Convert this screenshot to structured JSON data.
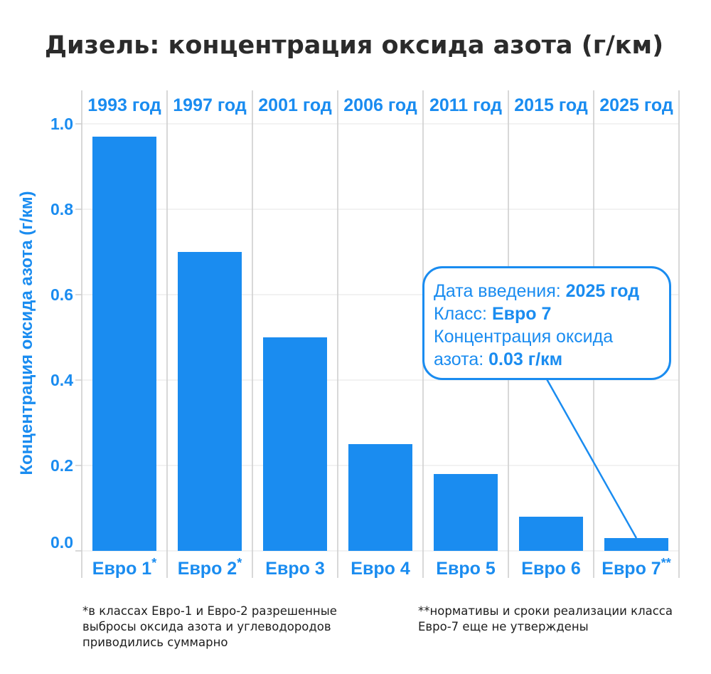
{
  "chart_data": {
    "type": "bar",
    "title": "Дизель: концентрация оксида азота (г/км)",
    "ylabel": "Концентрация оксида азота (г/км)",
    "xlabel": "",
    "categories": [
      "Евро 1",
      "Евро 2",
      "Евро 3",
      "Евро 4",
      "Евро 5",
      "Евро 6",
      "Евро 7"
    ],
    "category_marks": [
      "*",
      "*",
      "",
      "",
      "",
      "",
      "**"
    ],
    "years": [
      "1993 год",
      "1997 год",
      "2001 год",
      "2006 год",
      "2011 год",
      "2015 год",
      "2025 год"
    ],
    "values": [
      0.97,
      0.7,
      0.5,
      0.25,
      0.18,
      0.08,
      0.03
    ],
    "ylim": [
      0,
      1.0
    ],
    "yticks": [
      "0.0",
      "0.2",
      "0.4",
      "0.6",
      "0.8",
      "1.0"
    ],
    "grid": true,
    "colors": {
      "bar": "#1a8cf0",
      "text": "#1a8cf0",
      "title": "#2b2b2b",
      "grid": "#e6e6e6",
      "divider": "#cccccc"
    }
  },
  "tooltip": {
    "date_label": "Дата введения: ",
    "date_value": "2025 год",
    "class_label": "Класс: ",
    "class_value": "Евро 7",
    "conc_label_1": "Концентрация оксида",
    "conc_label_2": "азота: ",
    "conc_value": "0.03 г/км"
  },
  "footnotes": {
    "left": "*в классах Евро-1 и Евро-2 разрешенные\nвыбросы оксида азота и углеводородов\nприводились суммарно",
    "right": "**нормативы и сроки реализации класса\nЕвро-7 еще не утверждены"
  }
}
